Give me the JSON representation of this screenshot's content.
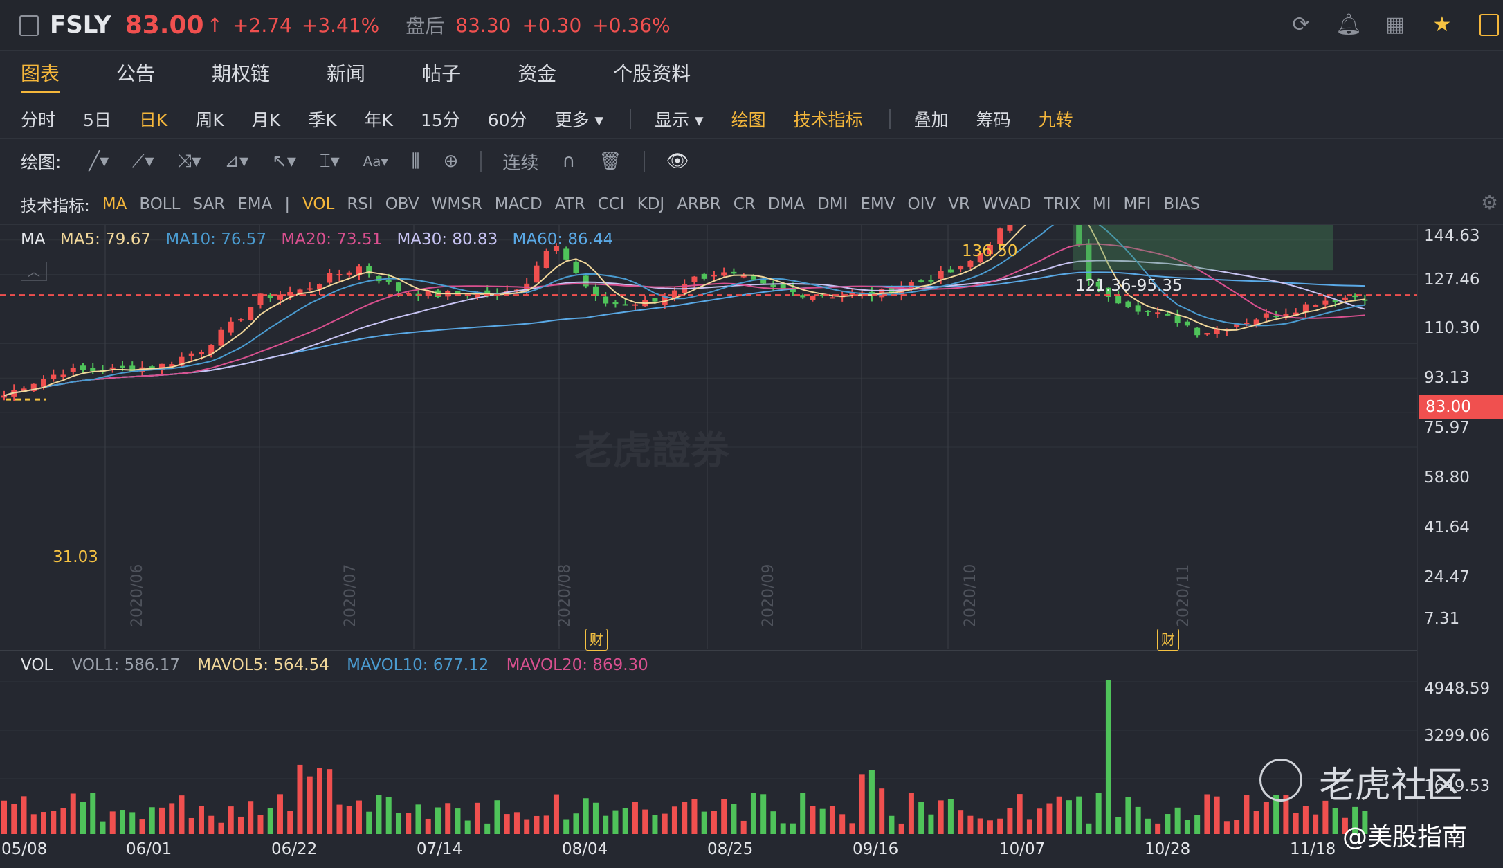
{
  "header": {
    "symbol": "FSLY",
    "price": "83.00",
    "change": "+2.74",
    "change_pct": "+3.41%",
    "after_hours_label": "盘后",
    "after_hours_price": "83.30",
    "after_hours_change": "+0.30",
    "after_hours_pct": "+0.36%"
  },
  "tabs": [
    "图表",
    "公告",
    "期权链",
    "新闻",
    "帖子",
    "资金",
    "个股资料"
  ],
  "periods": [
    "分时",
    "5日",
    "日K",
    "周K",
    "月K",
    "季K",
    "年K",
    "15分",
    "60分",
    "更多"
  ],
  "display_items": {
    "show": "显示",
    "draw": "绘图",
    "tech": "技术指标",
    "overlay": "叠加",
    "chips": "筹码",
    "nine": "九转"
  },
  "draw_bar": {
    "label": "绘图:",
    "continuous": "连续"
  },
  "indicators": {
    "label": "技术指标:",
    "main": [
      "MA",
      "BOLL",
      "SAR",
      "EMA"
    ],
    "sub": [
      "VOL",
      "RSI",
      "OBV",
      "WMSR",
      "MACD",
      "ATR",
      "CCI",
      "KDJ",
      "ARBR",
      "CR",
      "DMA",
      "DMI",
      "EMV",
      "OIV",
      "VR",
      "WVAD",
      "TRIX",
      "MI",
      "MFI",
      "BIAS"
    ]
  },
  "ma_legend": {
    "title": "MA",
    "ma5": "MA5: 79.67",
    "ma10": "MA10: 76.57",
    "ma20": "MA20: 73.51",
    "ma30": "MA30: 80.83",
    "ma60": "MA60: 86.44"
  },
  "vol_legend": {
    "title": "VOL",
    "vol1": "VOL1: 586.17",
    "mavol5": "MAVOL5: 564.54",
    "mavol10": "MAVOL10: 677.12",
    "mavol20": "MAVOL20: 869.30"
  },
  "price_axis": [
    "144.63",
    "127.46",
    "110.30",
    "93.13",
    "75.97",
    "58.80",
    "41.64",
    "24.47",
    "7.31"
  ],
  "current_price_tag": "83.00",
  "vol_axis": [
    "4948.59",
    "3299.06",
    "1649.53"
  ],
  "date_axis": [
    "05/08",
    "06/01",
    "06/22",
    "07/14",
    "08/04",
    "08/25",
    "09/16",
    "10/07",
    "10/28",
    "11/18"
  ],
  "month_labels": [
    "2020/06",
    "2020/07",
    "2020/08",
    "2020/09",
    "2020/10",
    "2020/11"
  ],
  "annotations": {
    "high": "136.50",
    "low": "31.03",
    "range": "121.36-95.35",
    "earnings": "财"
  },
  "colors": {
    "up": "#f0504f",
    "down": "#4fc35a",
    "ma5": "#f1d79a",
    "ma10": "#4a9bd0",
    "ma20": "#d9508f",
    "ma30": "#c7c3f2",
    "ma60": "#5aa9e6",
    "accent": "#f5b73b"
  },
  "watermark": {
    "center": "老虎證券",
    "bottom": "老虎社区",
    "author": "@美股指南"
  }
}
